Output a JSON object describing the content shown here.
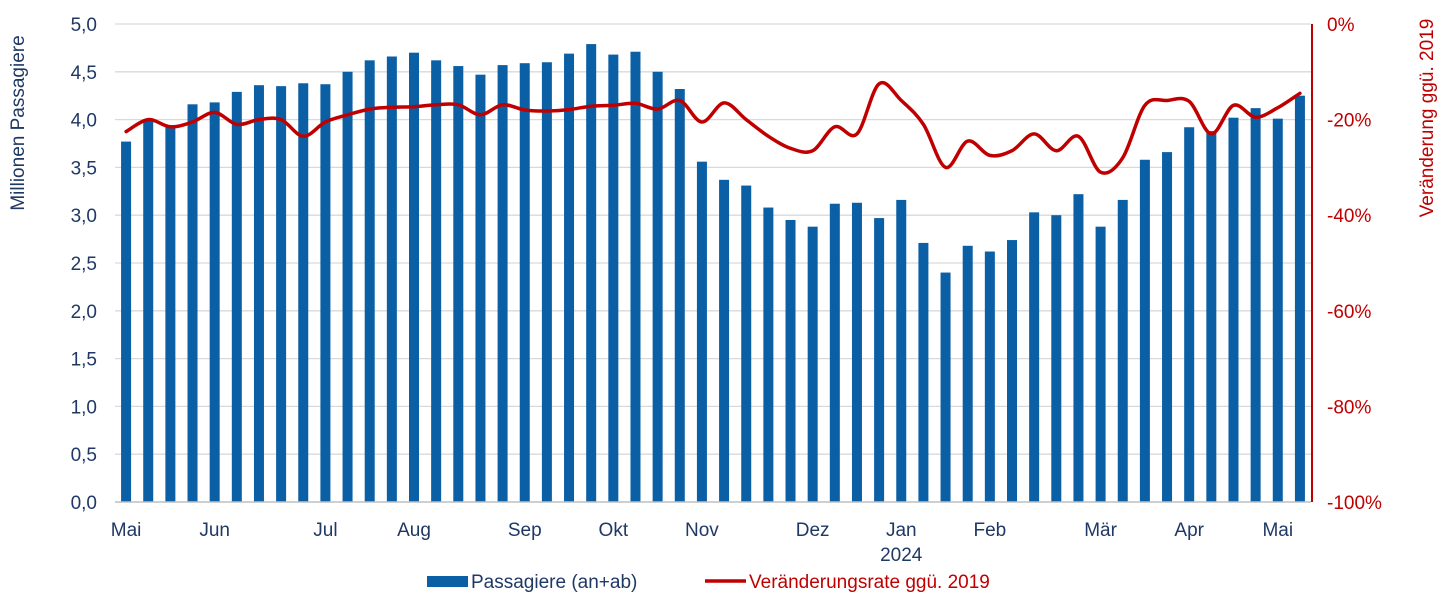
{
  "chart_data": {
    "type": "bar",
    "title": "",
    "ylabel": "Millionen Passagiere",
    "ylabel_right": "Veränderung ggü. 2019",
    "ylim": [
      0,
      5
    ],
    "ylim_right": [
      -100,
      0
    ],
    "yticks": [
      "0,0",
      "0,5",
      "1,0",
      "1,5",
      "2,0",
      "2,5",
      "3,0",
      "3,5",
      "4,0",
      "4,5",
      "5,0"
    ],
    "yticks_right": [
      "-100%",
      "-80%",
      "-60%",
      "-40%",
      "-20%",
      "0%"
    ],
    "grid": true,
    "legend_position": "bottom",
    "month_labels": [
      {
        "label": "Mai",
        "index": 0
      },
      {
        "label": "Jun",
        "index": 4
      },
      {
        "label": "Jul",
        "index": 9
      },
      {
        "label": "Aug",
        "index": 13
      },
      {
        "label": "Sep",
        "index": 18
      },
      {
        "label": "Okt",
        "index": 22
      },
      {
        "label": "Nov",
        "index": 26
      },
      {
        "label": "Dez",
        "index": 31
      },
      {
        "label": "Jan",
        "index": 35
      },
      {
        "label": "Feb",
        "index": 39
      },
      {
        "label": "Mär",
        "index": 44
      },
      {
        "label": "Apr",
        "index": 48
      },
      {
        "label": "Mai",
        "index": 52
      }
    ],
    "year_label": "2024",
    "year_label_index": 35,
    "series": [
      {
        "name": "Passagiere (an+ab)",
        "type": "bar",
        "axis": "left",
        "color": "#0b5fa5",
        "values": [
          3.77,
          4.0,
          3.94,
          4.16,
          4.18,
          4.29,
          4.36,
          4.35,
          4.38,
          4.37,
          4.5,
          4.62,
          4.66,
          4.7,
          4.62,
          4.56,
          4.47,
          4.57,
          4.59,
          4.6,
          4.69,
          4.79,
          4.68,
          4.71,
          4.5,
          4.32,
          3.56,
          3.37,
          3.31,
          3.08,
          2.95,
          2.88,
          3.12,
          3.13,
          2.97,
          3.16,
          2.71,
          2.4,
          2.68,
          2.62,
          2.74,
          3.03,
          3.0,
          3.22,
          2.88,
          3.16,
          3.58,
          3.66,
          3.92,
          3.88,
          4.02,
          4.12,
          4.01,
          4.25
        ]
      },
      {
        "name": "Veränderungsrate ggü. 2019",
        "type": "line",
        "axis": "right",
        "color": "#c00000",
        "values": [
          -22.5,
          -20.0,
          -21.5,
          -20.5,
          -18.5,
          -21.0,
          -20.0,
          -20.0,
          -23.5,
          -20.5,
          -19.0,
          -17.8,
          -17.4,
          -17.3,
          -16.9,
          -16.9,
          -19.0,
          -16.9,
          -18.0,
          -18.2,
          -17.9,
          -17.2,
          -17.0,
          -16.6,
          -17.8,
          -16.0,
          -20.5,
          -16.5,
          -20.0,
          -23.5,
          -26.0,
          -26.5,
          -21.5,
          -23.0,
          -12.5,
          -16.0,
          -21.0,
          -30.0,
          -24.5,
          -27.5,
          -26.5,
          -23.0,
          -26.5,
          -23.5,
          -31.0,
          -28.0,
          -17.0,
          -16.0,
          -16.2,
          -23.0,
          -17.0,
          -19.5,
          -17.5,
          -14.5
        ]
      }
    ]
  }
}
